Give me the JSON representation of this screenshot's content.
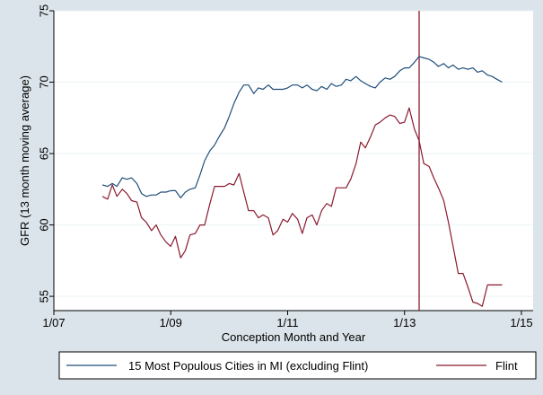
{
  "chart_data": {
    "type": "line",
    "title": "",
    "xlabel": "Conception Month and Year",
    "ylabel": "GFR (13 month moving average)",
    "xlim": [
      2007.0,
      2015.2
    ],
    "ylim": [
      54,
      75
    ],
    "xticks": [
      {
        "value": 2007.0,
        "label": "1/07"
      },
      {
        "value": 2009.0,
        "label": "1/09"
      },
      {
        "value": 2011.0,
        "label": "1/11"
      },
      {
        "value": 2013.0,
        "label": "1/13"
      },
      {
        "value": 2015.0,
        "label": "1/15"
      }
    ],
    "yticks": [
      55,
      60,
      65,
      70,
      75
    ],
    "vline": 2013.25,
    "legend_position": "bottom",
    "colors": {
      "cities": "#1f4e79",
      "flint": "#8b1a2e",
      "vline": "#8b1a2e",
      "plot_bg": "#ffffff",
      "outer_bg": "#dbe4ea"
    },
    "series": [
      {
        "name": "15 Most Populous Cities in MI (excluding Flint)",
        "key": "cities",
        "x": [
          2007.83,
          2007.92,
          2008.0,
          2008.08,
          2008.17,
          2008.25,
          2008.33,
          2008.42,
          2008.5,
          2008.58,
          2008.67,
          2008.75,
          2008.83,
          2008.92,
          2009.0,
          2009.08,
          2009.17,
          2009.25,
          2009.33,
          2009.42,
          2009.5,
          2009.58,
          2009.67,
          2009.75,
          2009.83,
          2009.92,
          2010.0,
          2010.08,
          2010.17,
          2010.25,
          2010.33,
          2010.42,
          2010.5,
          2010.58,
          2010.67,
          2010.75,
          2010.83,
          2010.92,
          2011.0,
          2011.08,
          2011.17,
          2011.25,
          2011.33,
          2011.42,
          2011.5,
          2011.58,
          2011.67,
          2011.75,
          2011.83,
          2011.92,
          2012.0,
          2012.08,
          2012.17,
          2012.25,
          2012.33,
          2012.42,
          2012.5,
          2012.58,
          2012.67,
          2012.75,
          2012.83,
          2012.92,
          2013.0,
          2013.08,
          2013.17,
          2013.25,
          2013.33,
          2013.42,
          2013.5,
          2013.58,
          2013.67,
          2013.75,
          2013.83,
          2013.92,
          2014.0,
          2014.08,
          2014.17,
          2014.25,
          2014.33,
          2014.42,
          2014.5,
          2014.58,
          2014.67
        ],
        "values": [
          62.8,
          62.7,
          62.9,
          62.7,
          63.3,
          63.2,
          63.3,
          62.9,
          62.2,
          62.0,
          62.1,
          62.1,
          62.3,
          62.3,
          62.4,
          62.4,
          61.9,
          62.3,
          62.5,
          62.6,
          63.5,
          64.5,
          65.2,
          65.6,
          66.2,
          66.8,
          67.6,
          68.5,
          69.3,
          69.8,
          69.8,
          69.2,
          69.6,
          69.5,
          69.8,
          69.5,
          69.5,
          69.5,
          69.6,
          69.8,
          69.8,
          69.6,
          69.8,
          69.5,
          69.4,
          69.7,
          69.5,
          69.9,
          69.7,
          69.8,
          70.2,
          70.1,
          70.4,
          70.1,
          69.9,
          69.7,
          69.6,
          70.0,
          70.3,
          70.2,
          70.4,
          70.8,
          71.0,
          71.0,
          71.4,
          71.8,
          71.7,
          71.6,
          71.4,
          71.1,
          71.3,
          71.0,
          71.2,
          70.9,
          71.0,
          70.9,
          71.0,
          70.7,
          70.8,
          70.5,
          70.4,
          70.2,
          70.0
        ]
      },
      {
        "name": "Flint",
        "key": "flint",
        "x": [
          2007.83,
          2007.92,
          2008.0,
          2008.08,
          2008.17,
          2008.25,
          2008.33,
          2008.42,
          2008.5,
          2008.58,
          2008.67,
          2008.75,
          2008.83,
          2008.92,
          2009.0,
          2009.08,
          2009.17,
          2009.25,
          2009.33,
          2009.42,
          2009.5,
          2009.58,
          2009.67,
          2009.75,
          2009.83,
          2009.92,
          2010.0,
          2010.08,
          2010.17,
          2010.25,
          2010.33,
          2010.42,
          2010.5,
          2010.58,
          2010.67,
          2010.75,
          2010.83,
          2010.92,
          2011.0,
          2011.08,
          2011.17,
          2011.25,
          2011.33,
          2011.42,
          2011.5,
          2011.58,
          2011.67,
          2011.75,
          2011.83,
          2011.92,
          2012.0,
          2012.08,
          2012.17,
          2012.25,
          2012.33,
          2012.42,
          2012.5,
          2012.58,
          2012.67,
          2012.75,
          2012.83,
          2012.92,
          2013.0,
          2013.08,
          2013.17,
          2013.25,
          2013.33,
          2013.42,
          2013.5,
          2013.58,
          2013.67,
          2013.75,
          2013.83,
          2013.92,
          2014.0,
          2014.08,
          2014.17,
          2014.25,
          2014.33,
          2014.42,
          2014.5,
          2014.58,
          2014.67
        ],
        "values": [
          62.0,
          61.8,
          62.8,
          62.0,
          62.5,
          62.2,
          61.7,
          61.6,
          60.5,
          60.2,
          59.6,
          60.0,
          59.3,
          58.8,
          58.5,
          59.2,
          57.7,
          58.2,
          59.3,
          59.4,
          60.0,
          60.0,
          61.5,
          62.7,
          62.7,
          62.7,
          62.9,
          62.8,
          63.6,
          62.3,
          61.0,
          61.0,
          60.5,
          60.7,
          60.5,
          59.3,
          59.6,
          60.4,
          60.2,
          60.8,
          60.4,
          59.4,
          60.5,
          60.7,
          60.0,
          61.0,
          61.5,
          61.3,
          62.6,
          62.6,
          62.6,
          63.2,
          64.3,
          65.8,
          65.4,
          66.2,
          67.0,
          67.2,
          67.5,
          67.7,
          67.6,
          67.1,
          67.2,
          68.2,
          66.7,
          65.9,
          64.3,
          64.1,
          63.3,
          62.6,
          61.7,
          60.2,
          58.5,
          56.6,
          56.6,
          55.7,
          54.6,
          54.5,
          54.3,
          55.8,
          55.8,
          55.8,
          55.8
        ]
      }
    ]
  }
}
